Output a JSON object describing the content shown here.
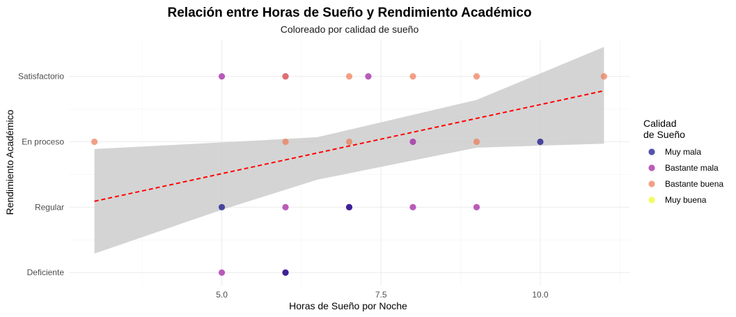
{
  "chart_data": {
    "type": "scatter",
    "title": "Relación entre Horas de Sueño y Rendimiento Académico",
    "subtitle": "Coloreado por calidad de sueño",
    "xlabel": "Horas de Sueño por Noche",
    "ylabel": "Rendimiento Académico",
    "xlim": [
      2.6,
      11.4
    ],
    "x_ticks": [
      5.0,
      7.5,
      10.0
    ],
    "x_tick_labels": [
      "5.0",
      "7.5",
      "10.0"
    ],
    "y_categories": [
      "Deficiente",
      "Regular",
      "En proceso",
      "Satisfactorio"
    ],
    "grid": true,
    "legend": {
      "title_line1": "Calidad",
      "title_line2": "de Sueño",
      "position": "right",
      "items": [
        {
          "label": "Muy mala",
          "color": "#0d0887"
        },
        {
          "label": "Bastante mala",
          "color": "#9c179e"
        },
        {
          "label": "Bastante buena",
          "color": "#ed7953"
        },
        {
          "label": "Muy buena",
          "color": "#f0f921"
        }
      ]
    },
    "points": [
      {
        "x": 5,
        "y": 4,
        "quality": "Bastante mala"
      },
      {
        "x": 6,
        "y": 4,
        "quality": "Bastante mala"
      },
      {
        "x": 6,
        "y": 4,
        "quality": "Bastante buena"
      },
      {
        "x": 7,
        "y": 4,
        "quality": "Bastante buena"
      },
      {
        "x": 7.3,
        "y": 4,
        "quality": "Bastante mala"
      },
      {
        "x": 8,
        "y": 4,
        "quality": "Bastante buena"
      },
      {
        "x": 9,
        "y": 4,
        "quality": "Bastante buena"
      },
      {
        "x": 11,
        "y": 4,
        "quality": "Bastante buena"
      },
      {
        "x": 3,
        "y": 3,
        "quality": "Bastante buena"
      },
      {
        "x": 6,
        "y": 3,
        "quality": "Bastante buena"
      },
      {
        "x": 7,
        "y": 3,
        "quality": "Bastante buena"
      },
      {
        "x": 8,
        "y": 3,
        "quality": "Bastante mala"
      },
      {
        "x": 9,
        "y": 3,
        "quality": "Bastante buena"
      },
      {
        "x": 10,
        "y": 3,
        "quality": "Muy mala"
      },
      {
        "x": 5,
        "y": 2,
        "quality": "Muy mala"
      },
      {
        "x": 6,
        "y": 2,
        "quality": "Bastante mala"
      },
      {
        "x": 7,
        "y": 2,
        "quality": "Bastante mala"
      },
      {
        "x": 7,
        "y": 2,
        "quality": "Muy mala"
      },
      {
        "x": 8,
        "y": 2,
        "quality": "Bastante mala"
      },
      {
        "x": 9,
        "y": 2,
        "quality": "Bastante mala"
      },
      {
        "x": 5,
        "y": 1,
        "quality": "Bastante mala"
      },
      {
        "x": 6,
        "y": 1,
        "quality": "Bastante mala"
      },
      {
        "x": 6,
        "y": 1,
        "quality": "Muy mala"
      }
    ],
    "trend_line": {
      "x": [
        3,
        11
      ],
      "y": [
        2.09,
        3.78
      ],
      "color": "#ff0000",
      "style": "dashed"
    },
    "confidence_band": {
      "x": [
        3,
        5,
        6.5,
        9,
        11
      ],
      "lower": [
        1.29,
        1.96,
        2.42,
        2.91,
        2.97
      ],
      "upper": [
        2.89,
        2.99,
        3.07,
        3.64,
        4.45
      ],
      "color": "#cccccc"
    }
  }
}
